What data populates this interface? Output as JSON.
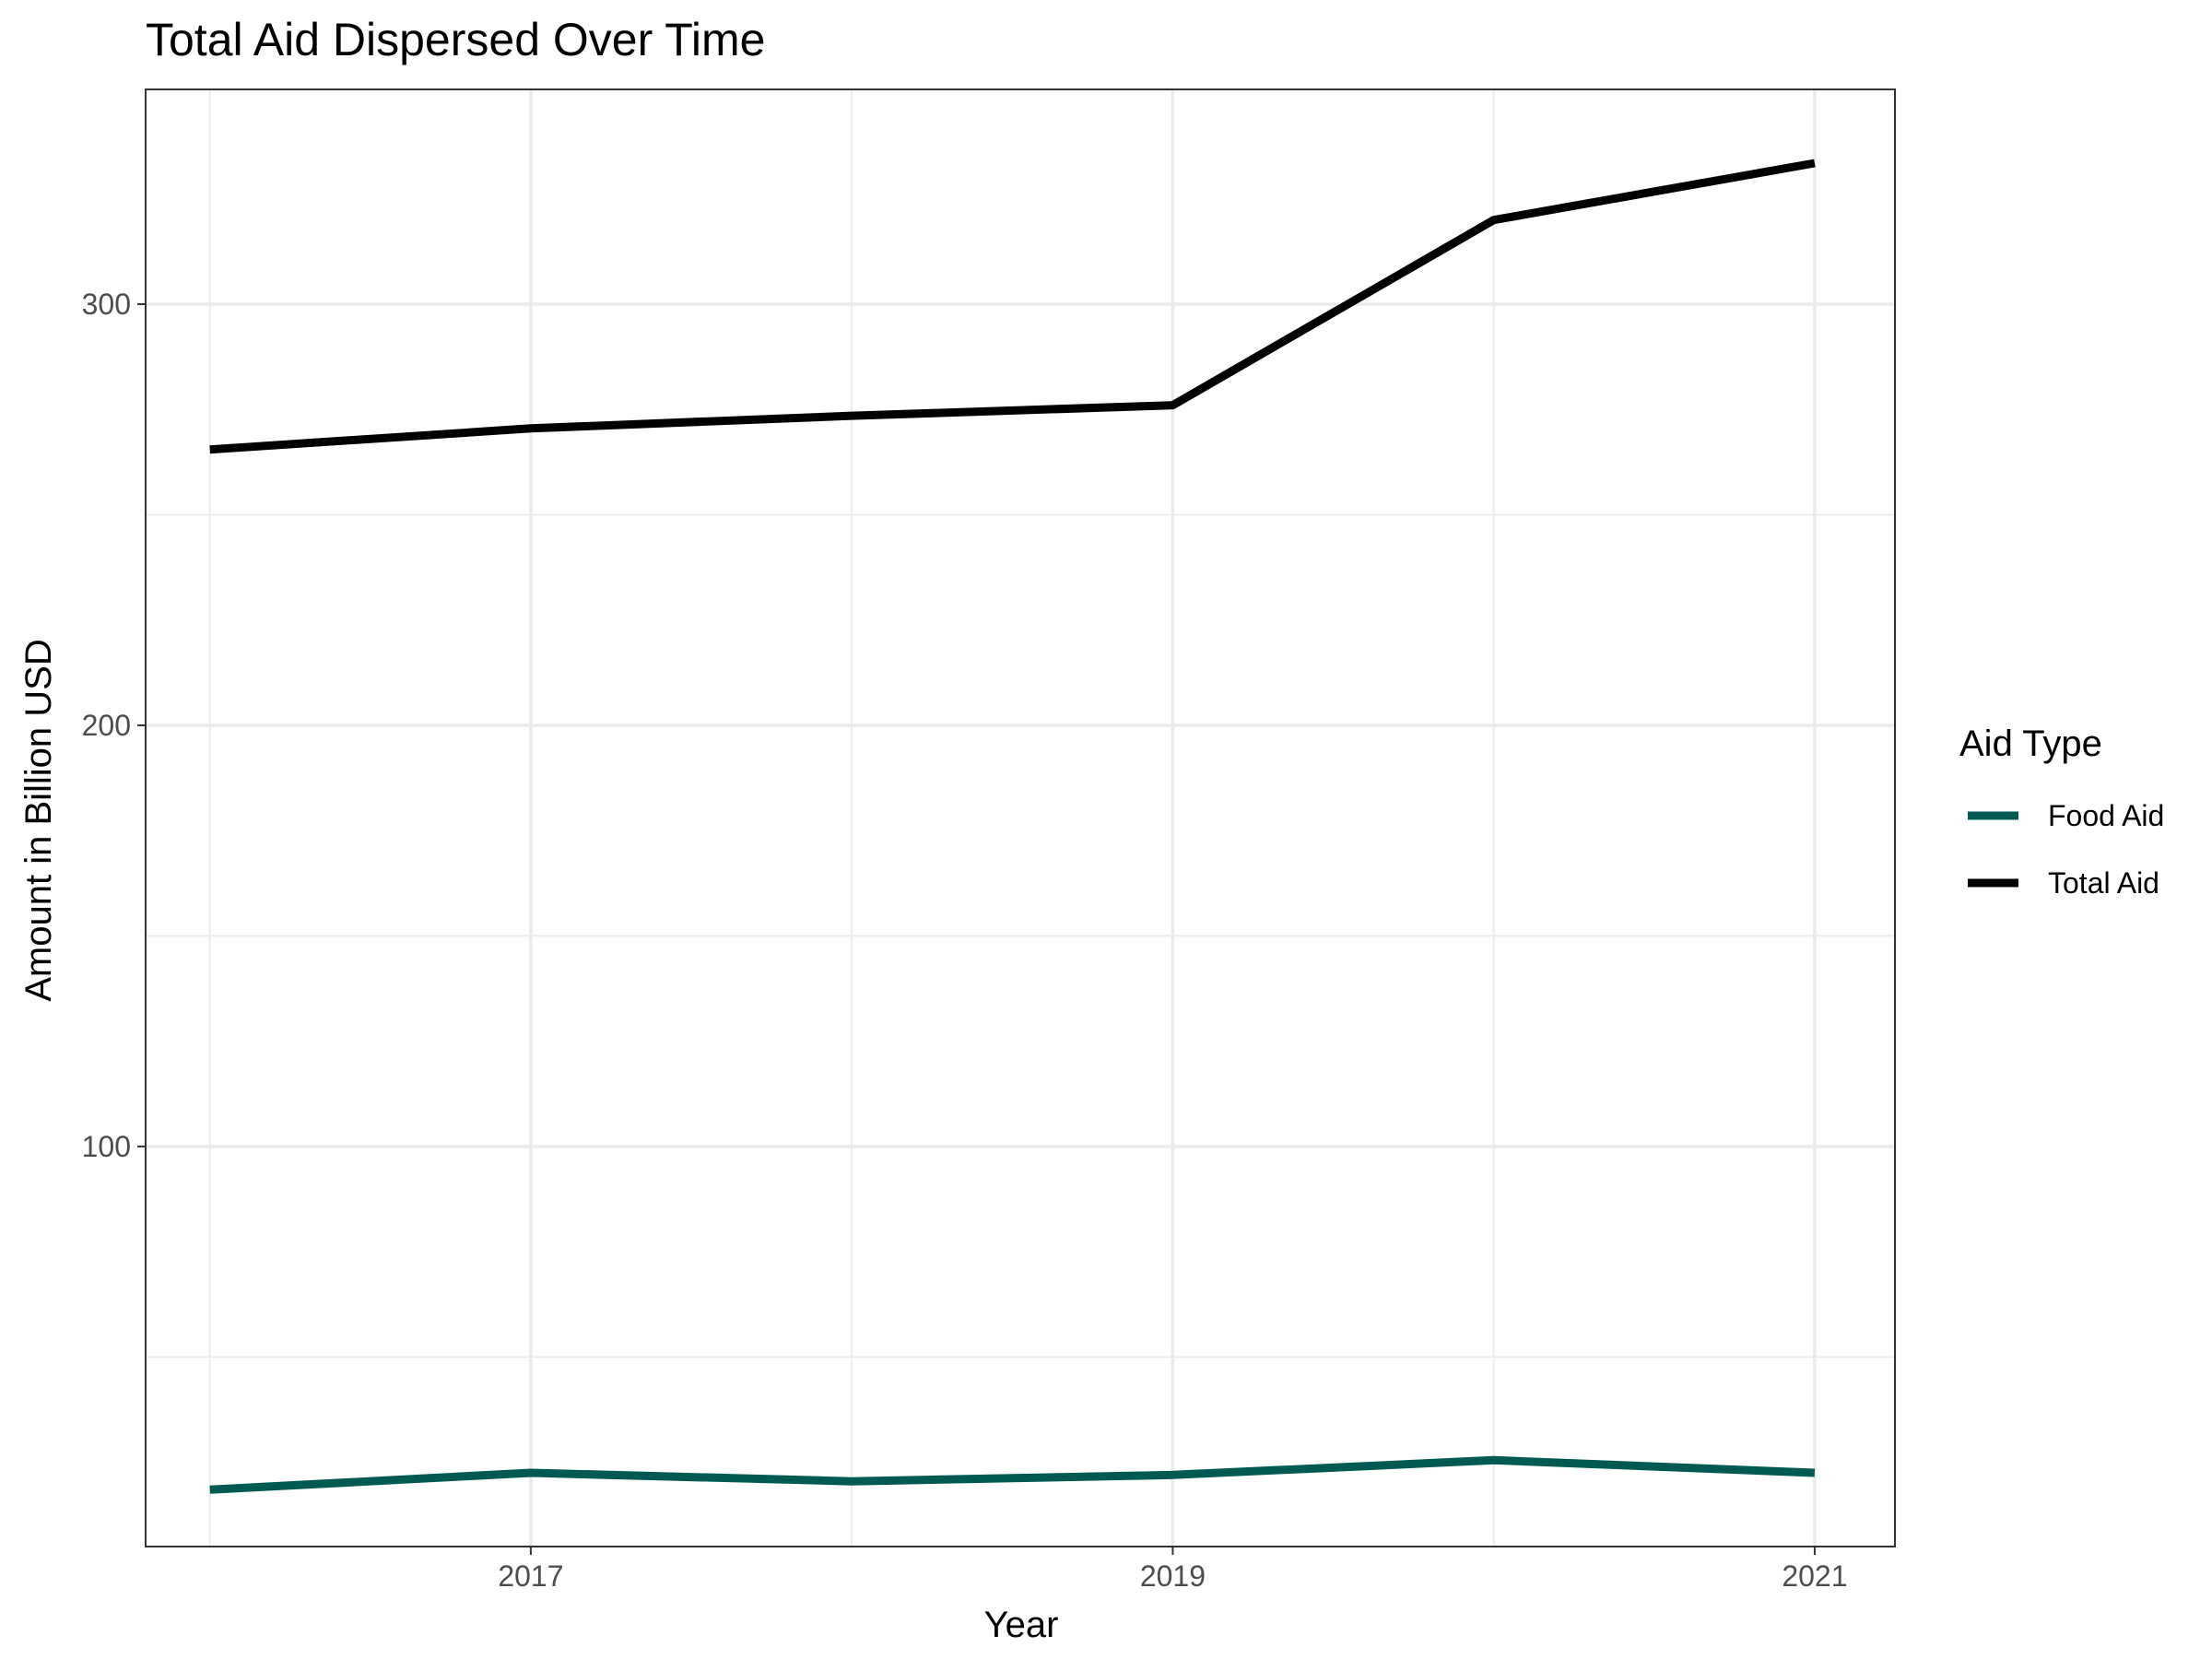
{
  "chart_data": {
    "type": "line",
    "title": "Total Aid Dispersed Over Time",
    "xlabel": "Year",
    "ylabel": "Amount in Billion USD",
    "x": [
      2016,
      2017,
      2018,
      2019,
      2020,
      2021
    ],
    "xlim": [
      2015.8,
      2021.25
    ],
    "ylim": [
      5,
      351
    ],
    "x_ticks": [
      2017,
      2019,
      2021
    ],
    "x_minor_ticks": [
      2016,
      2018,
      2020
    ],
    "y_ticks": [
      100,
      200,
      300
    ],
    "y_minor_ticks": [
      50,
      150,
      250
    ],
    "grid": true,
    "legend": {
      "title": "Aid Type",
      "position": "right"
    },
    "series": [
      {
        "name": "Food Aid",
        "color": "#005a52",
        "values": [
          18.5,
          22.5,
          20.5,
          22.0,
          25.5,
          22.5
        ]
      },
      {
        "name": "Total Aid",
        "color": "#000000",
        "values": [
          265.5,
          270.5,
          273.5,
          276.0,
          320.0,
          333.5
        ]
      }
    ]
  }
}
